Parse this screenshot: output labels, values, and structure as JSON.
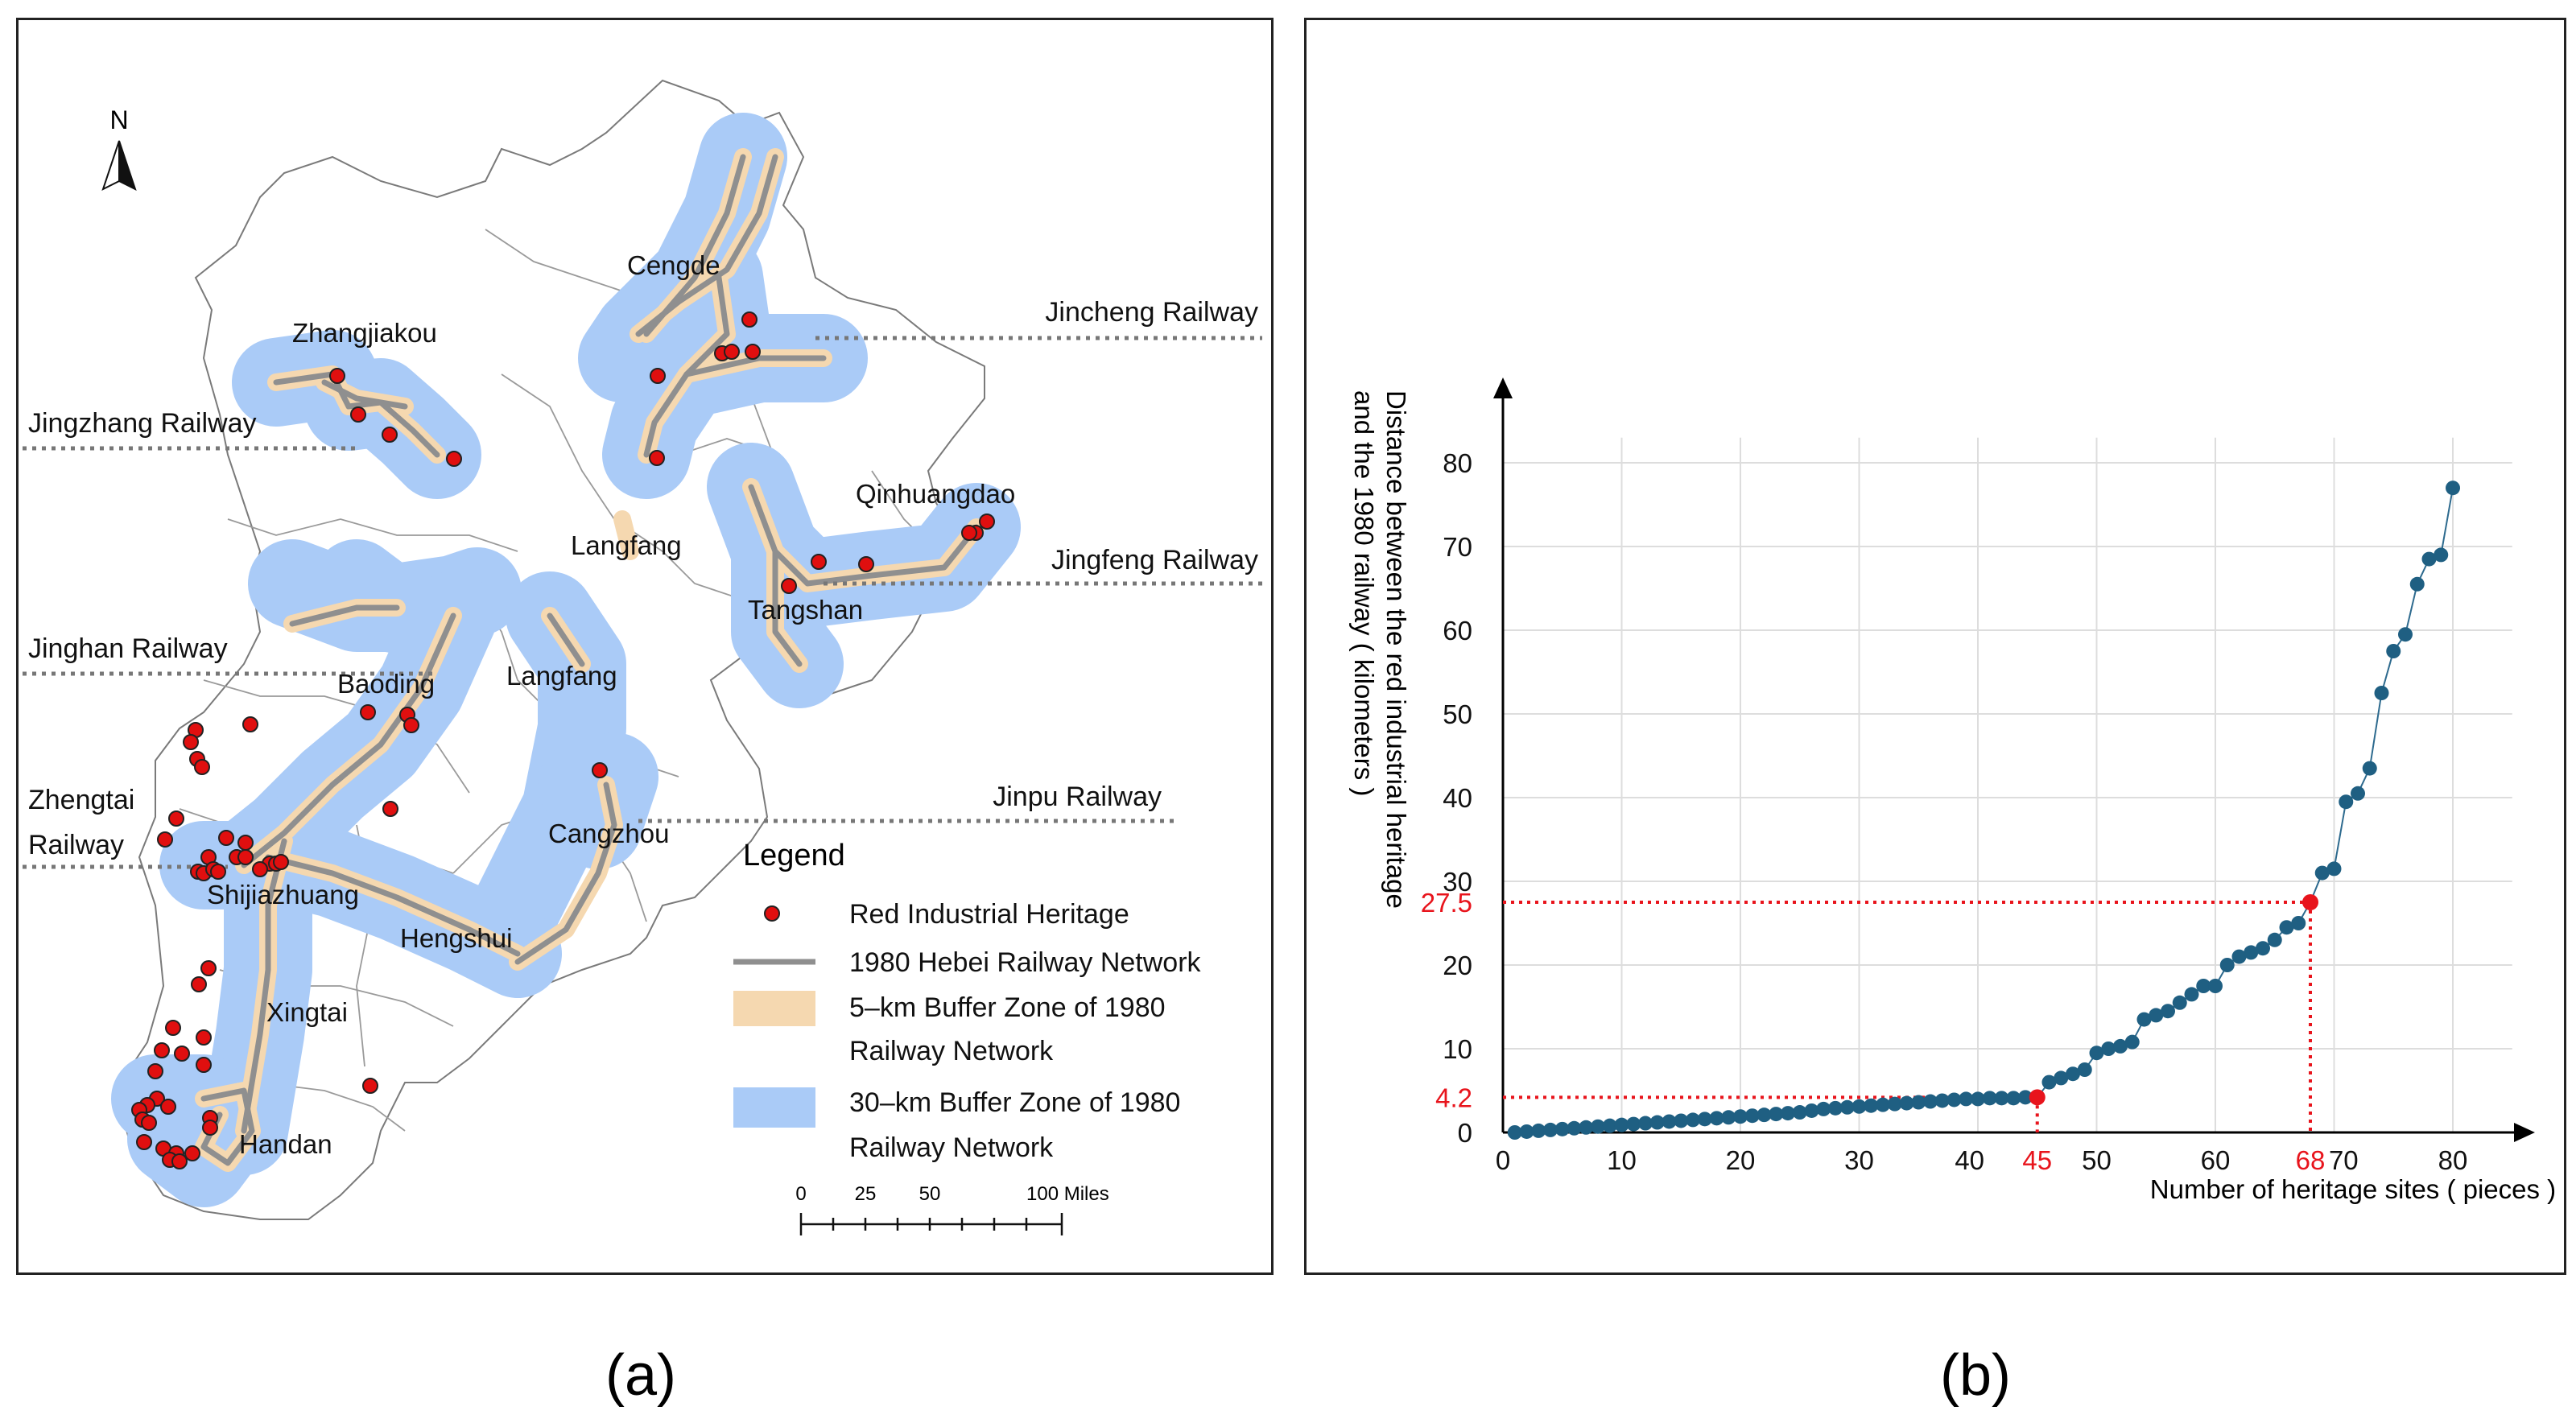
{
  "captions": {
    "a": "(a)",
    "b": "(b)"
  },
  "map": {
    "north": "N",
    "cities": {
      "zhangjiakou": "Zhangjiakou",
      "cengde": "Cengde",
      "qinhuangdao": "Qinhuangdao",
      "langfang_north": "Langfang",
      "tangshan": "Tangshan",
      "baoding": "Baoding",
      "langfang_south": "Langfang",
      "cangzhou": "Cangzhou",
      "shijiazhuang": "Shijiazhuang",
      "hengshui": "Hengshui",
      "xingtai": "Xingtai",
      "handan": "Handan"
    },
    "railways": {
      "jincheng": "Jincheng Railway",
      "jingzhang": "Jingzhang Railway",
      "jingfeng": "Jingfeng Railway",
      "jinghan": "Jinghan Railway",
      "jinpu": "Jinpu Railway",
      "zhengtai_1": "Zhengtai",
      "zhengtai_2": "Railway"
    },
    "legend": {
      "title": "Legend",
      "heritage": "Red Industrial Heritage",
      "network": "1980 Hebei Railway Network",
      "buffer5_1": "5–km Buffer Zone of 1980",
      "buffer5_2": "Railway Network",
      "buffer30_1": "30–km Buffer Zone of 1980",
      "buffer30_2": "Railway Network"
    },
    "scale": {
      "t0": "0",
      "t25": "25",
      "t50": "50",
      "t100": "100 Miles"
    },
    "colors": {
      "buffer30": "#aacbf7",
      "buffer5": "#f5d8b0",
      "rail": "#8f8f8f",
      "heritage": "#e00f0f"
    }
  },
  "chart_data": {
    "type": "scatter",
    "xlabel": "Number of heritage sites ( pieces )",
    "ylabel_1": "Distance between the red industrial heritage",
    "ylabel_2": "and the 1980 railway ( kilometers )",
    "xlim": [
      0,
      85
    ],
    "ylim": [
      0,
      85
    ],
    "xticks": [
      "0",
      "10",
      "20",
      "30",
      "40",
      "50",
      "60",
      "70",
      "80"
    ],
    "yticks": [
      "0",
      "10",
      "20",
      "30",
      "40",
      "50",
      "60",
      "70",
      "80"
    ],
    "annotations": {
      "x1": "45",
      "x2": "68",
      "y1": "4.2",
      "y2": "27.5"
    },
    "highlight": [
      {
        "x": 45,
        "y": 4.2
      },
      {
        "x": 68,
        "y": 27.5
      }
    ],
    "x": [
      1,
      2,
      3,
      4,
      5,
      6,
      7,
      8,
      9,
      10,
      11,
      12,
      13,
      14,
      15,
      16,
      17,
      18,
      19,
      20,
      21,
      22,
      23,
      24,
      25,
      26,
      27,
      28,
      29,
      30,
      31,
      32,
      33,
      34,
      35,
      36,
      37,
      38,
      39,
      40,
      41,
      42,
      43,
      44,
      45,
      46,
      47,
      48,
      49,
      50,
      51,
      52,
      53,
      54,
      55,
      56,
      57,
      58,
      59,
      60,
      61,
      62,
      63,
      64,
      65,
      66,
      67,
      68,
      69,
      70,
      71,
      72,
      73,
      74,
      75,
      76,
      77,
      78,
      79,
      80
    ],
    "y": [
      0.0,
      0.1,
      0.2,
      0.3,
      0.4,
      0.5,
      0.6,
      0.7,
      0.8,
      0.9,
      1.0,
      1.1,
      1.2,
      1.3,
      1.4,
      1.5,
      1.6,
      1.7,
      1.8,
      1.9,
      2.0,
      2.1,
      2.2,
      2.3,
      2.4,
      2.6,
      2.8,
      2.9,
      3.0,
      3.1,
      3.2,
      3.3,
      3.4,
      3.5,
      3.6,
      3.7,
      3.8,
      3.9,
      4.0,
      4.0,
      4.1,
      4.1,
      4.1,
      4.2,
      4.2,
      6.0,
      6.5,
      7.0,
      7.5,
      9.5,
      10.0,
      10.3,
      10.8,
      13.5,
      14.0,
      14.5,
      15.5,
      16.5,
      17.5,
      17.5,
      20.0,
      21.0,
      21.5,
      22.0,
      23.0,
      24.5,
      25.0,
      27.5,
      31.0,
      31.5,
      39.5,
      40.5,
      43.5,
      52.5,
      57.5,
      59.5,
      65.5,
      68.5,
      69.0,
      77.0
    ]
  }
}
